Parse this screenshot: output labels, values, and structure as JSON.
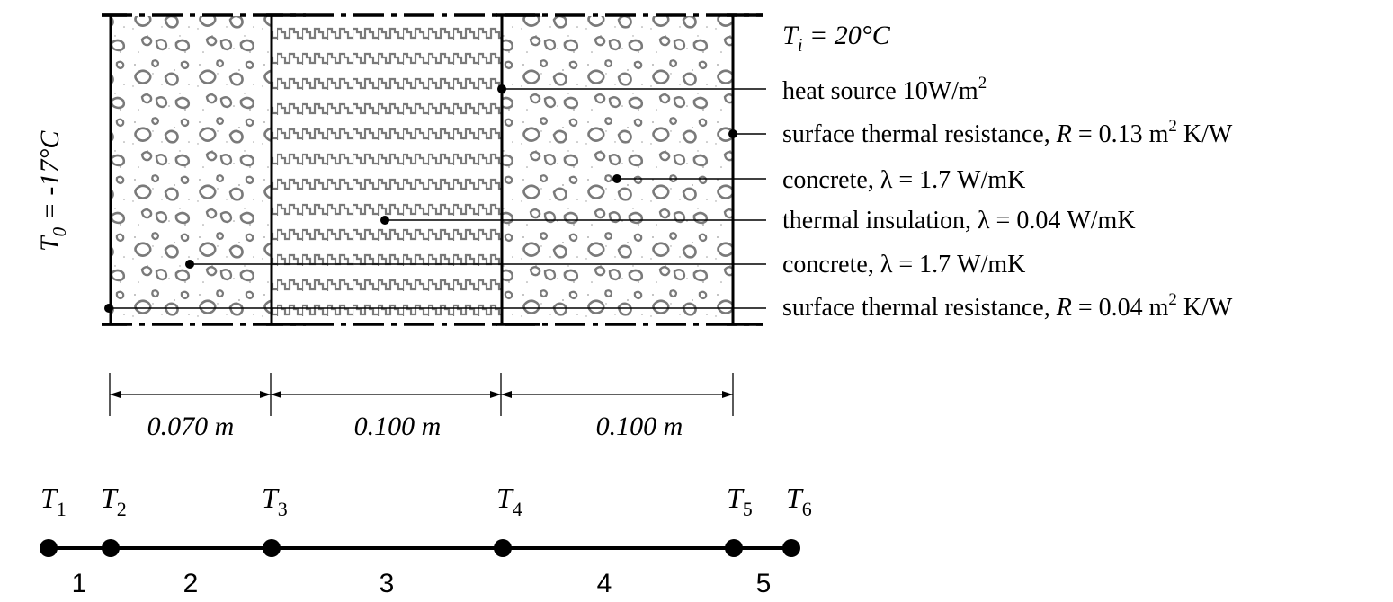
{
  "temperatures": {
    "inside": {
      "symbol": "T",
      "sub": "i",
      "text": " = 20°C"
    },
    "outside": {
      "symbol": "T",
      "sub": "0",
      "text": " = -17°C"
    }
  },
  "callouts": {
    "heat_source": {
      "text": "heat source 10W/m",
      "sup": "2"
    },
    "surface_in": {
      "pre": "surface thermal resistance, ",
      "sym": "R",
      "mid": " = 0.13 m",
      "sup": "2",
      "post": " K/W"
    },
    "concrete_in": {
      "text": "concrete, λ = 1.7 W/mK"
    },
    "insulation": {
      "text": "thermal insulation, λ = 0.04 W/mK"
    },
    "concrete_out": {
      "text": "concrete, λ = 1.7 W/mK"
    },
    "surface_out": {
      "pre": "surface thermal resistance, ",
      "sym": "R",
      "mid": " = 0.04 m",
      "sup": "2",
      "post": " K/W"
    }
  },
  "dimensions": [
    "0.070 m",
    "0.100 m",
    "0.100 m"
  ],
  "nodes": [
    {
      "sym": "T",
      "sub": "1"
    },
    {
      "sym": "T",
      "sub": "2"
    },
    {
      "sym": "T",
      "sub": "3"
    },
    {
      "sym": "T",
      "sub": "4"
    },
    {
      "sym": "T",
      "sub": "5"
    },
    {
      "sym": "T",
      "sub": "6"
    }
  ],
  "elements": [
    "1",
    "2",
    "3",
    "4",
    "5"
  ],
  "colors": {
    "line": "#000000",
    "hatch": "#7a7a7a",
    "stipple": "#9a9a9a"
  }
}
